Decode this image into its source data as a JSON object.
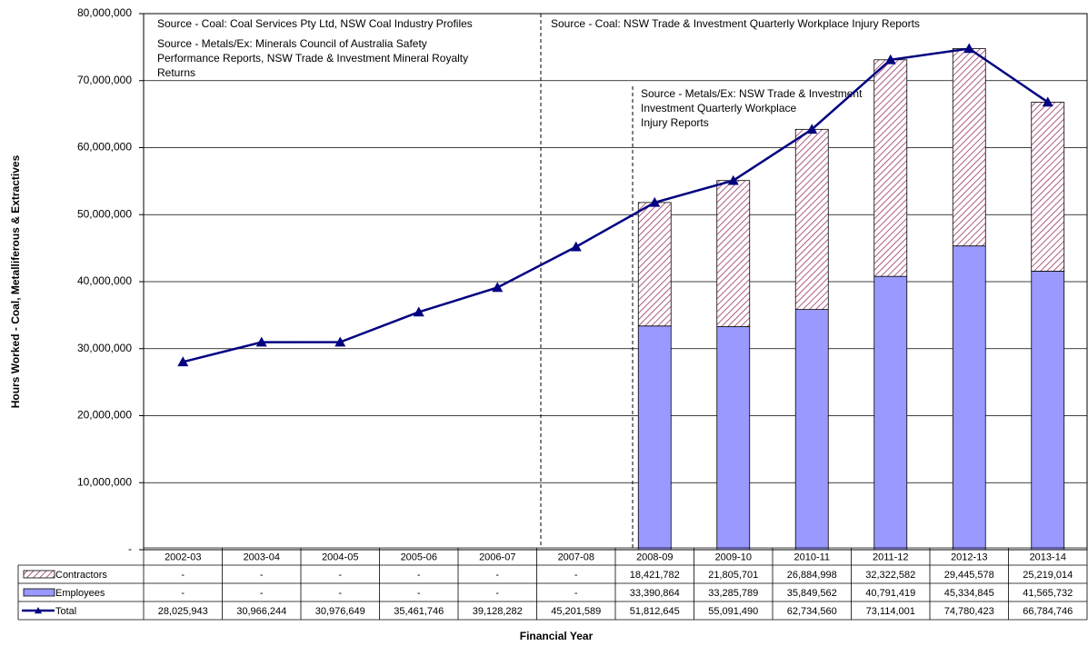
{
  "chart_data": {
    "type": "bar",
    "y_label": "Hours Worked - Coal, Metalliferous & Extractives",
    "x_label": "Financial Year",
    "categories": [
      "2002-03",
      "2003-04",
      "2004-05",
      "2005-06",
      "2006-07",
      "2007-08",
      "2008-09",
      "2009-10",
      "2010-11",
      "2011-12",
      "2012-13",
      "2013-14"
    ],
    "series": [
      {
        "name": "Contractors",
        "type": "bar",
        "pattern": "hatch",
        "color": "#993366",
        "values": [
          null,
          null,
          null,
          null,
          null,
          null,
          18421782,
          21805701,
          26884998,
          32322582,
          29445578,
          25219014
        ],
        "value_labels": [
          "-",
          "-",
          "-",
          "-",
          "-",
          "-",
          "18,421,782",
          "21,805,701",
          "26,884,998",
          "32,322,582",
          "29,445,578",
          "25,219,014"
        ]
      },
      {
        "name": "Employees",
        "type": "bar",
        "color": "#9999ff",
        "values": [
          null,
          null,
          null,
          null,
          null,
          null,
          33390864,
          33285789,
          35849562,
          40791419,
          45334845,
          41565732
        ],
        "value_labels": [
          "-",
          "-",
          "-",
          "-",
          "-",
          "-",
          "33,390,864",
          "33,285,789",
          "35,849,562",
          "40,791,419",
          "45,334,845",
          "41,565,732"
        ]
      },
      {
        "name": "Total",
        "type": "line",
        "color": "#000080",
        "values": [
          28025943,
          30966244,
          30976649,
          35461746,
          39128282,
          45201589,
          51812645,
          55091490,
          62734560,
          73114001,
          74780423,
          66784746
        ],
        "value_labels": [
          "28,025,943",
          "30,966,244",
          "30,976,649",
          "35,461,746",
          "39,128,282",
          "45,201,589",
          "51,812,645",
          "55,091,490",
          "62,734,560",
          "73,114,001",
          "74,780,423",
          "66,784,746"
        ]
      }
    ],
    "ylim": [
      0,
      80000000
    ],
    "yticks": [
      {
        "value": 0,
        "label": "-"
      },
      {
        "value": 10000000,
        "label": "10,000,000"
      },
      {
        "value": 20000000,
        "label": "20,000,000"
      },
      {
        "value": 30000000,
        "label": "30,000,000"
      },
      {
        "value": 40000000,
        "label": "40,000,000"
      },
      {
        "value": 50000000,
        "label": "50,000,000"
      },
      {
        "value": 60000000,
        "label": "60,000,000"
      },
      {
        "value": 70000000,
        "label": "70,000,000"
      },
      {
        "value": 80000000,
        "label": "80,000,000"
      }
    ],
    "grid": true,
    "annotations": [
      [
        "Source - Coal:  Coal Services Pty Ltd, NSW Coal Industry Profiles"
      ],
      [
        "Source - Metals/Ex:  Minerals Council of Australia Safety",
        "Performance Reports, NSW Trade & Investment Mineral Royalty",
        "Returns"
      ],
      [
        "Source - Coal:  NSW Trade & Investment Quarterly Workplace Injury Reports"
      ],
      [
        "Source - Metals/Ex:  NSW Trade & Investment",
        "Investment Quarterly Workplace",
        "Injury Reports"
      ]
    ]
  }
}
